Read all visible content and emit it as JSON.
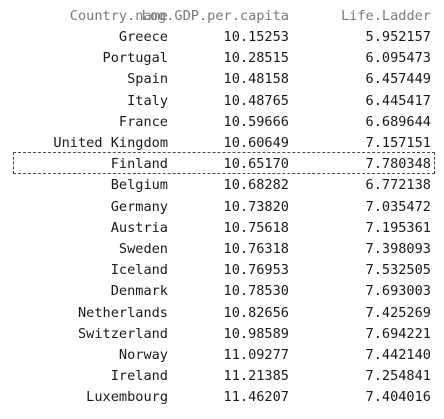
{
  "table": {
    "columns": [
      "Country.name",
      "Log.GDP.per.capita",
      "Life.Ladder"
    ],
    "rows": [
      [
        "Greece",
        "10.15253",
        "5.952157"
      ],
      [
        "Portugal",
        "10.28515",
        "6.095473"
      ],
      [
        "Spain",
        "10.48158",
        "6.457449"
      ],
      [
        "Italy",
        "10.48765",
        "6.445417"
      ],
      [
        "France",
        "10.59666",
        "6.689644"
      ],
      [
        "United Kingdom",
        "10.60649",
        "7.157151"
      ],
      [
        "Finland",
        "10.65170",
        "7.780348"
      ],
      [
        "Belgium",
        "10.68282",
        "6.772138"
      ],
      [
        "Germany",
        "10.73820",
        "7.035472"
      ],
      [
        "Austria",
        "10.75618",
        "7.195361"
      ],
      [
        "Sweden",
        "10.76318",
        "7.398093"
      ],
      [
        "Iceland",
        "10.76953",
        "7.532505"
      ],
      [
        "Denmark",
        "10.78530",
        "7.693003"
      ],
      [
        "Netherlands",
        "10.82656",
        "7.425269"
      ],
      [
        "Switzerland",
        "10.98589",
        "7.694221"
      ],
      [
        "Norway",
        "11.09277",
        "7.442140"
      ],
      [
        "Ireland",
        "11.21385",
        "7.254841"
      ],
      [
        "Luxembourg",
        "11.46207",
        "7.404016"
      ]
    ]
  }
}
